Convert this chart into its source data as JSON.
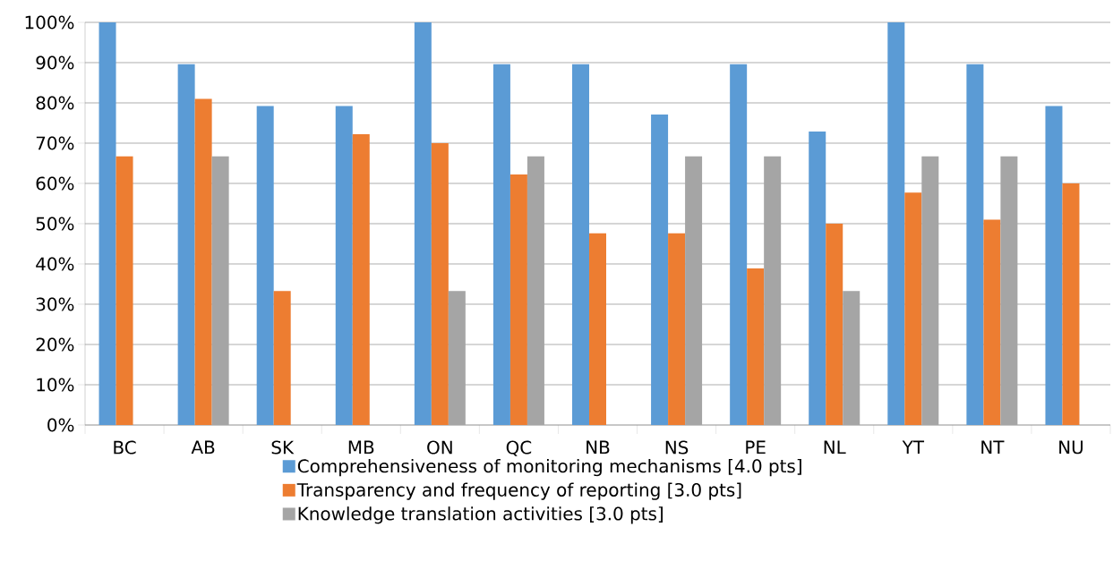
{
  "chart_data": {
    "type": "bar",
    "categories": [
      "BC",
      "AB",
      "SK",
      "MB",
      "ON",
      "QC",
      "NB",
      "NS",
      "PE",
      "NL",
      "YT",
      "NT",
      "NU"
    ],
    "series": [
      {
        "name": "Comprehensiveness of monitoring mechanisms [4.0 pts]",
        "color": "#5b9bd5",
        "values": [
          100,
          89.6,
          79.2,
          79.2,
          100,
          89.6,
          89.6,
          77.1,
          89.6,
          72.9,
          100,
          89.6,
          79.2
        ]
      },
      {
        "name": "Transparency and frequency of reporting [3.0 pts]",
        "color": "#ed7d31",
        "values": [
          66.7,
          81.0,
          33.3,
          72.2,
          70.0,
          62.2,
          47.6,
          47.6,
          38.9,
          50.0,
          57.7,
          51.0,
          60.0
        ]
      },
      {
        "name": "Knowledge translation activities [3.0 pts]",
        "color": "#a5a5a5",
        "values": [
          null,
          66.7,
          null,
          null,
          33.3,
          66.7,
          null,
          66.7,
          66.7,
          33.3,
          66.7,
          66.7,
          null
        ]
      }
    ],
    "ylim": [
      0,
      100
    ],
    "yticks": [
      {
        "value": 0,
        "label": "0%"
      },
      {
        "value": 10,
        "label": "10%"
      },
      {
        "value": 20,
        "label": "20%"
      },
      {
        "value": 30,
        "label": "30%"
      },
      {
        "value": 40,
        "label": "40%"
      },
      {
        "value": 50,
        "label": "50%"
      },
      {
        "value": 60,
        "label": "60%"
      },
      {
        "value": 70,
        "label": "70%"
      },
      {
        "value": 80,
        "label": "80%"
      },
      {
        "value": 90,
        "label": "90%"
      },
      {
        "value": 100,
        "label": "100%"
      }
    ],
    "grid": "y",
    "legend": "bottom"
  }
}
